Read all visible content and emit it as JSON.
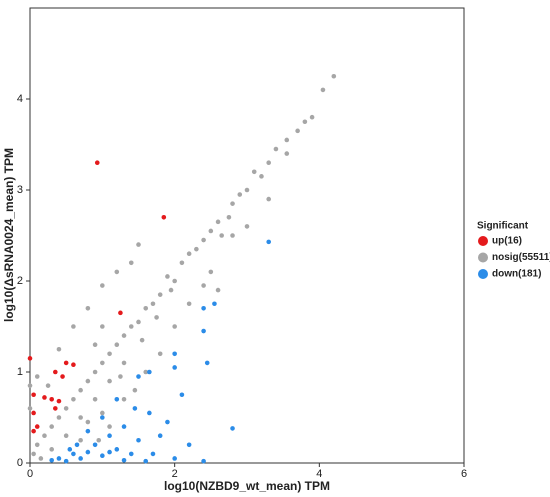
{
  "chart_data": {
    "type": "scatter",
    "x_label": "log10(NZBD9_wt_mean) TPM",
    "y_label": "log10(ΔsRNA0024_mean) TPM",
    "legend_title": "Significant",
    "legend": "right",
    "xlim": [
      0,
      6
    ],
    "xticks": [
      0,
      2,
      4,
      6
    ],
    "ylim": [
      0,
      5
    ],
    "yticks": [
      0,
      1,
      2,
      3,
      4
    ],
    "series": [
      {
        "name": "nosig(55511)",
        "color": "#a6a6a6",
        "x": [
          4.2,
          4.05,
          3.9,
          3.8,
          3.7,
          3.55,
          3.4,
          3.3,
          3.55,
          3.2,
          3.1,
          3.0,
          2.9,
          2.8,
          2.75,
          2.6,
          2.5,
          2.65,
          2.4,
          2.3,
          2.2,
          2.1,
          2.0,
          1.9,
          1.95,
          1.8,
          1.7,
          1.6,
          1.75,
          1.5,
          1.4,
          1.3,
          1.55,
          1.2,
          1.1,
          1.3,
          1.0,
          0.9,
          1.1,
          0.8,
          0.7,
          0.9,
          0.6,
          0.5,
          0.7,
          0.4,
          0.3,
          0.5,
          0.2,
          0.1,
          0.3,
          0.05,
          0.15,
          0.0,
          0.0,
          0.1,
          0.25,
          0.4,
          0.6,
          0.8,
          1.0,
          1.2,
          1.4,
          1.5,
          1.0,
          0.9,
          1.6,
          1.8,
          2.0,
          2.2,
          2.5,
          2.8,
          2.4,
          1.3,
          1.0,
          0.8,
          1.1,
          1.45,
          1.25,
          2.6,
          3.0,
          3.3,
          0.7,
          0.95
        ],
        "y": [
          4.25,
          4.1,
          3.8,
          3.75,
          3.65,
          3.55,
          3.45,
          3.3,
          3.4,
          3.15,
          3.2,
          3.0,
          2.95,
          2.85,
          2.7,
          2.65,
          2.55,
          2.5,
          2.45,
          2.35,
          2.3,
          2.2,
          2.0,
          2.05,
          1.9,
          1.85,
          1.75,
          1.7,
          1.6,
          1.55,
          1.5,
          1.4,
          1.35,
          1.3,
          1.2,
          1.1,
          1.1,
          1.0,
          0.9,
          0.9,
          0.8,
          0.7,
          0.7,
          0.6,
          0.5,
          0.5,
          0.4,
          0.3,
          0.3,
          0.2,
          0.15,
          0.1,
          0.05,
          0.85,
          0.6,
          0.95,
          0.85,
          1.25,
          1.5,
          1.7,
          1.95,
          2.1,
          2.2,
          2.4,
          1.5,
          1.3,
          1.0,
          1.2,
          1.5,
          1.75,
          2.1,
          2.5,
          1.95,
          0.7,
          0.55,
          0.45,
          0.4,
          0.8,
          0.95,
          1.9,
          2.6,
          2.9,
          0.25,
          0.25
        ]
      },
      {
        "name": "up(16)",
        "color": "#e41a1c",
        "x": [
          0.93,
          1.85,
          1.25,
          0.0,
          0.5,
          0.6,
          0.35,
          0.45,
          0.05,
          0.2,
          0.3,
          0.4,
          0.05,
          0.35,
          0.05,
          0.1
        ],
        "y": [
          3.3,
          2.7,
          1.65,
          1.15,
          1.1,
          1.08,
          1.0,
          0.95,
          0.75,
          0.72,
          0.7,
          0.68,
          0.55,
          0.6,
          0.35,
          0.4
        ]
      },
      {
        "name": "down(181)",
        "color": "#2b8ce8",
        "x": [
          3.3,
          2.4,
          2.55,
          2.4,
          2.0,
          2.45,
          1.65,
          2.0,
          1.5,
          2.1,
          2.8,
          1.2,
          1.45,
          1.65,
          1.9,
          1.0,
          1.3,
          0.8,
          1.1,
          1.5,
          2.0,
          1.7,
          1.2,
          0.9,
          0.6,
          0.4,
          0.5,
          0.7,
          1.0,
          1.3,
          1.6,
          2.4,
          0.3,
          0.8,
          1.1,
          1.4,
          1.8,
          2.2,
          0.65,
          0.55
        ],
        "y": [
          2.43,
          1.7,
          1.75,
          1.45,
          1.2,
          1.1,
          1.0,
          1.05,
          0.95,
          0.75,
          0.38,
          0.7,
          0.6,
          0.55,
          0.45,
          0.5,
          0.4,
          0.35,
          0.3,
          0.25,
          0.05,
          0.1,
          0.15,
          0.2,
          0.1,
          0.05,
          0.02,
          0.05,
          0.08,
          0.03,
          0.02,
          0.02,
          0.03,
          0.12,
          0.12,
          0.1,
          0.3,
          0.2,
          0.2,
          0.15
        ]
      }
    ]
  }
}
